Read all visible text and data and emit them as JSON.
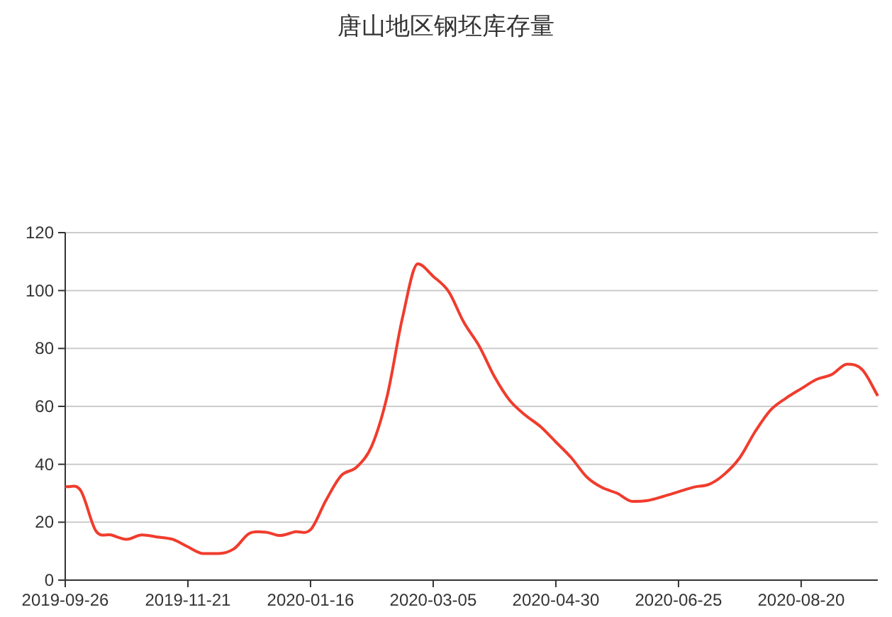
{
  "chart_data": {
    "type": "line",
    "title": "唐山地区钢坯库存量",
    "categories": [
      "2019-09-26",
      null,
      null,
      null,
      null,
      null,
      null,
      null,
      "2019-11-21",
      null,
      null,
      null,
      null,
      null,
      null,
      null,
      "2020-01-16",
      null,
      null,
      null,
      null,
      null,
      null,
      null,
      "2020-03-05",
      null,
      null,
      null,
      null,
      null,
      null,
      null,
      "2020-04-30",
      null,
      null,
      null,
      null,
      null,
      null,
      null,
      "2020-06-25",
      null,
      null,
      null,
      null,
      null,
      null,
      null,
      "2020-08-20",
      null,
      null,
      null,
      null,
      null
    ],
    "series": [
      {
        "color": "#f03c2d",
        "values": [
          32.3,
          31.0,
          17,
          15.6,
          14.1,
          15.6,
          14.9,
          14.1,
          11.5,
          9.2,
          9.2,
          10.8,
          16.1,
          16.6,
          15.4,
          16.7,
          17.4,
          27.5,
          36.1,
          39.0,
          46.4,
          63.6,
          90.7,
          109.2,
          104.9,
          99.7,
          89.0,
          80.8,
          70.2,
          62.0,
          57.0,
          53.0,
          47.7,
          42.3,
          35.7,
          32.0,
          30.0,
          27.2,
          27.5,
          28.9,
          30.5,
          32.1,
          33.1,
          36.6,
          42.3,
          51.3,
          58.7,
          62.8,
          66.1,
          69.3,
          71.0,
          74.6,
          72.6,
          63.6
        ]
      }
    ],
    "ylim": [
      0,
      120
    ],
    "yticks": [
      0,
      20,
      40,
      60,
      80,
      100,
      120
    ],
    "grid": "y",
    "line_style": "solid"
  }
}
